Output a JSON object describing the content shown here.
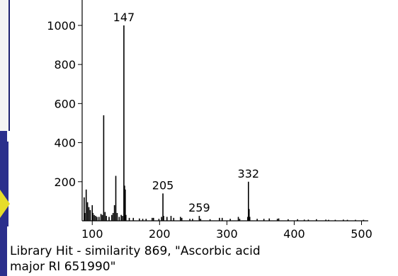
{
  "chart_data": {
    "type": "bar",
    "title": "",
    "xlabel": "",
    "ylabel": "",
    "xlim": [
      85,
      510
    ],
    "ylim": [
      0,
      1130
    ],
    "x_ticks": [
      100,
      200,
      300,
      400,
      500
    ],
    "y_ticks": [
      200,
      400,
      600,
      800,
      1000
    ],
    "x_tick_labels": [
      "100",
      "200",
      "300",
      "400",
      "500"
    ],
    "y_tick_labels": [
      "200",
      "400",
      "600",
      "800",
      "1000"
    ],
    "grid": false,
    "peak_labels": [
      {
        "x": 147,
        "text": "147"
      },
      {
        "x": 205,
        "text": "205"
      },
      {
        "x": 259,
        "text": "259"
      },
      {
        "x": 332,
        "text": "332"
      }
    ],
    "peaks": [
      {
        "x": 88,
        "y": 120
      },
      {
        "x": 89,
        "y": 40
      },
      {
        "x": 91,
        "y": 160
      },
      {
        "x": 93,
        "y": 95
      },
      {
        "x": 95,
        "y": 70
      },
      {
        "x": 97,
        "y": 55
      },
      {
        "x": 100,
        "y": 80
      },
      {
        "x": 101,
        "y": 40
      },
      {
        "x": 103,
        "y": 30
      },
      {
        "x": 105,
        "y": 25
      },
      {
        "x": 107,
        "y": 20
      },
      {
        "x": 110,
        "y": 20
      },
      {
        "x": 113,
        "y": 35
      },
      {
        "x": 115,
        "y": 30
      },
      {
        "x": 117,
        "y": 540
      },
      {
        "x": 119,
        "y": 45
      },
      {
        "x": 121,
        "y": 25
      },
      {
        "x": 125,
        "y": 20
      },
      {
        "x": 129,
        "y": 30
      },
      {
        "x": 131,
        "y": 40
      },
      {
        "x": 133,
        "y": 80
      },
      {
        "x": 135,
        "y": 230
      },
      {
        "x": 137,
        "y": 40
      },
      {
        "x": 140,
        "y": 20
      },
      {
        "x": 143,
        "y": 30
      },
      {
        "x": 145,
        "y": 25
      },
      {
        "x": 147,
        "y": 1000
      },
      {
        "x": 148,
        "y": 180
      },
      {
        "x": 149,
        "y": 160
      },
      {
        "x": 150,
        "y": 30
      },
      {
        "x": 155,
        "y": 15
      },
      {
        "x": 161,
        "y": 15
      },
      {
        "x": 170,
        "y": 12
      },
      {
        "x": 175,
        "y": 10
      },
      {
        "x": 180,
        "y": 10
      },
      {
        "x": 189,
        "y": 15
      },
      {
        "x": 191,
        "y": 15
      },
      {
        "x": 199,
        "y": 10
      },
      {
        "x": 203,
        "y": 20
      },
      {
        "x": 205,
        "y": 140
      },
      {
        "x": 206,
        "y": 25
      },
      {
        "x": 211,
        "y": 20
      },
      {
        "x": 217,
        "y": 25
      },
      {
        "x": 221,
        "y": 15
      },
      {
        "x": 231,
        "y": 20
      },
      {
        "x": 233,
        "y": 15
      },
      {
        "x": 245,
        "y": 10
      },
      {
        "x": 249,
        "y": 10
      },
      {
        "x": 259,
        "y": 25
      },
      {
        "x": 261,
        "y": 10
      },
      {
        "x": 275,
        "y": 8
      },
      {
        "x": 289,
        "y": 15
      },
      {
        "x": 293,
        "y": 15
      },
      {
        "x": 305,
        "y": 10
      },
      {
        "x": 317,
        "y": 20
      },
      {
        "x": 319,
        "y": 10
      },
      {
        "x": 331,
        "y": 20
      },
      {
        "x": 332,
        "y": 200
      },
      {
        "x": 333,
        "y": 60
      },
      {
        "x": 334,
        "y": 20
      },
      {
        "x": 345,
        "y": 10
      },
      {
        "x": 355,
        "y": 10
      },
      {
        "x": 363,
        "y": 12
      },
      {
        "x": 375,
        "y": 10
      },
      {
        "x": 377,
        "y": 12
      },
      {
        "x": 391,
        "y": 8
      },
      {
        "x": 405,
        "y": 8
      },
      {
        "x": 415,
        "y": 6
      },
      {
        "x": 421,
        "y": 6
      },
      {
        "x": 433,
        "y": 8
      },
      {
        "x": 447,
        "y": 6
      },
      {
        "x": 451,
        "y": 5
      },
      {
        "x": 461,
        "y": 5
      },
      {
        "x": 473,
        "y": 6
      },
      {
        "x": 479,
        "y": 5
      },
      {
        "x": 491,
        "y": 5
      },
      {
        "x": 503,
        "y": 5
      }
    ]
  },
  "caption": {
    "line1": "Library Hit - similarity 869, \"Ascorbic acid",
    "line2": "major RI 651990\""
  },
  "colors": {
    "slide_blue": "#2b2f8c",
    "arrow_yellow": "#e6dd2a",
    "ink": "#000000"
  }
}
